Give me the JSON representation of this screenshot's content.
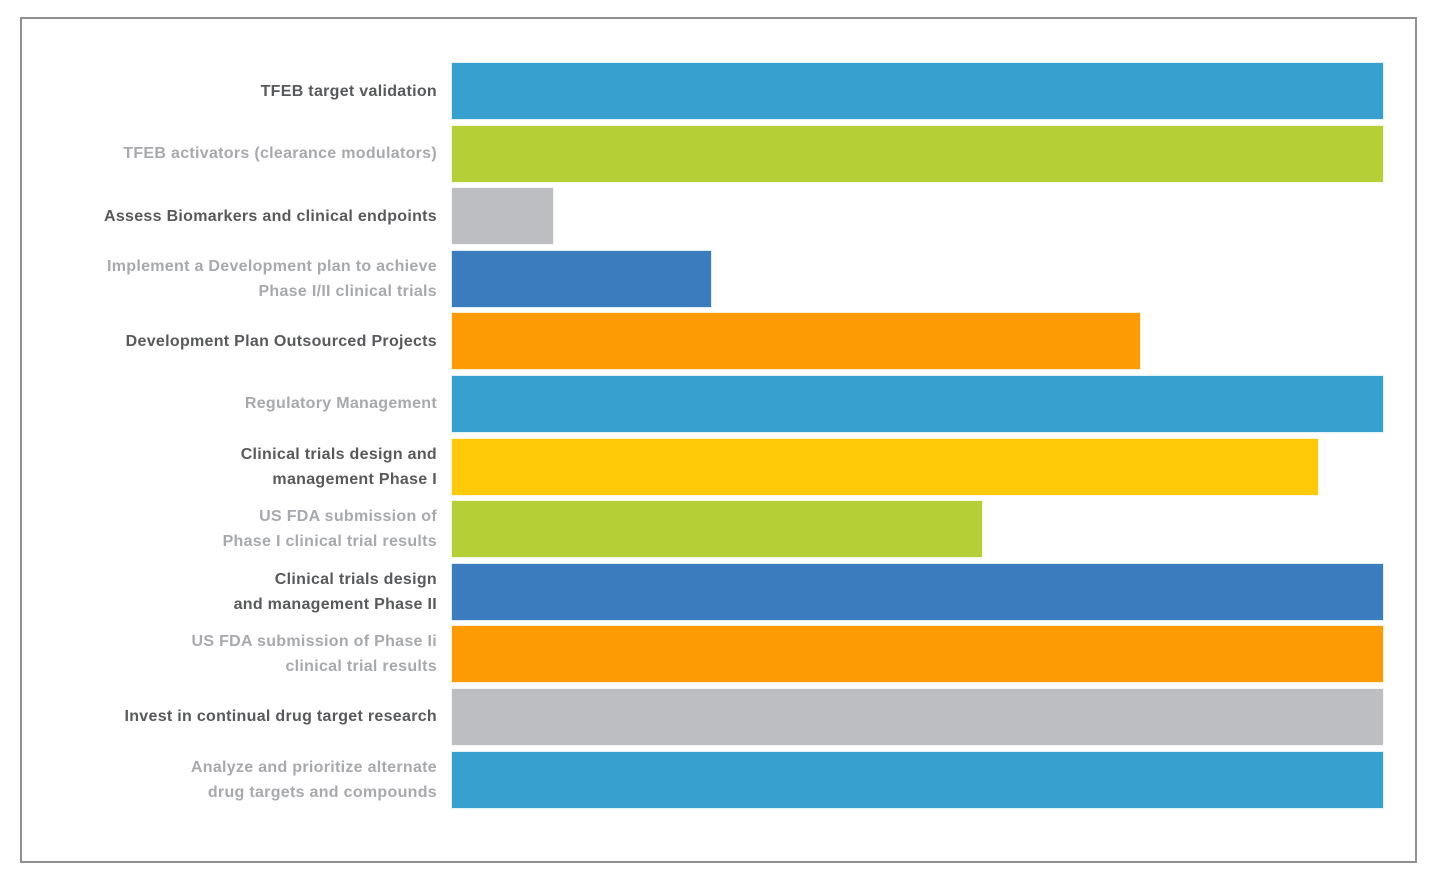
{
  "chart_data": {
    "type": "bar",
    "orientation": "horizontal",
    "title": "",
    "xlabel": "",
    "ylabel": "",
    "xlim": [
      0,
      100
    ],
    "grid": false,
    "legend": "none",
    "value_unit": "percent_of_full_track_width",
    "categories": [
      "TFEB target validation",
      "TFEB activators (clearance modulators)",
      "Assess Biomarkers and clinical endpoints",
      "Implement a Development plan to achieve Phase I/II clinical trials",
      "Development Plan Outsourced Projects",
      "Regulatory Management",
      "Clinical trials design and management Phase I",
      "US FDA submission of Phase I clinical trial results",
      "Clinical trials design and management Phase II",
      "US FDA submission of Phase Ii clinical trial results",
      "Invest in continual drug target research",
      "Analyze and prioritize alternate drug targets and compounds"
    ],
    "values": [
      100,
      100,
      11,
      28,
      74,
      100,
      93,
      57,
      100,
      100,
      100,
      100
    ],
    "bars": [
      {
        "label_lines": [
          "TFEB target validation"
        ],
        "value": 100,
        "color": "#38a0ce",
        "label_style": "dark"
      },
      {
        "label_lines": [
          "TFEB activators (clearance modulators)"
        ],
        "value": 100,
        "color": "#b5d036",
        "label_style": "light"
      },
      {
        "label_lines": [
          "Assess Biomarkers and clinical endpoints"
        ],
        "value": 11,
        "color": "#bdbec1",
        "label_style": "dark"
      },
      {
        "label_lines": [
          "Implement a Development plan to achieve",
          "Phase I/II clinical trials"
        ],
        "value": 28,
        "color": "#3a7cbe",
        "label_style": "light"
      },
      {
        "label_lines": [
          "Development Plan Outsourced Projects"
        ],
        "value": 74,
        "color": "#fc9b03",
        "label_style": "dark"
      },
      {
        "label_lines": [
          "Regulatory Management"
        ],
        "value": 100,
        "color": "#38a0ce",
        "label_style": "light"
      },
      {
        "label_lines": [
          "Clinical trials design and",
          "management Phase I"
        ],
        "value": 93,
        "color": "#ffc908",
        "label_style": "dark"
      },
      {
        "label_lines": [
          "US FDA submission of",
          "Phase I clinical trial results"
        ],
        "value": 57,
        "color": "#b5d036",
        "label_style": "light"
      },
      {
        "label_lines": [
          "Clinical trials design",
          "and management Phase II"
        ],
        "value": 100,
        "color": "#3a7cbe",
        "label_style": "dark"
      },
      {
        "label_lines": [
          "US FDA submission of Phase Ii",
          "clinical trial results"
        ],
        "value": 100,
        "color": "#fc9b03",
        "label_style": "light"
      },
      {
        "label_lines": [
          "Invest in continual drug target research"
        ],
        "value": 100,
        "color": "#bdbec1",
        "label_style": "dark"
      },
      {
        "label_lines": [
          "Analyze and prioritize alternate",
          "drug targets and compounds"
        ],
        "value": 100,
        "color": "#38a0ce",
        "label_style": "light"
      }
    ],
    "palette": {
      "light_blue": "#38a0ce",
      "green": "#b5d036",
      "gray": "#bdbec1",
      "dark_blue": "#3a7cbe",
      "orange": "#fc9b03",
      "yellow": "#ffc908"
    },
    "label_colors": {
      "dark": "#58595b",
      "light": "#a7a9ac"
    },
    "frame_border_color": "#8f9092"
  }
}
